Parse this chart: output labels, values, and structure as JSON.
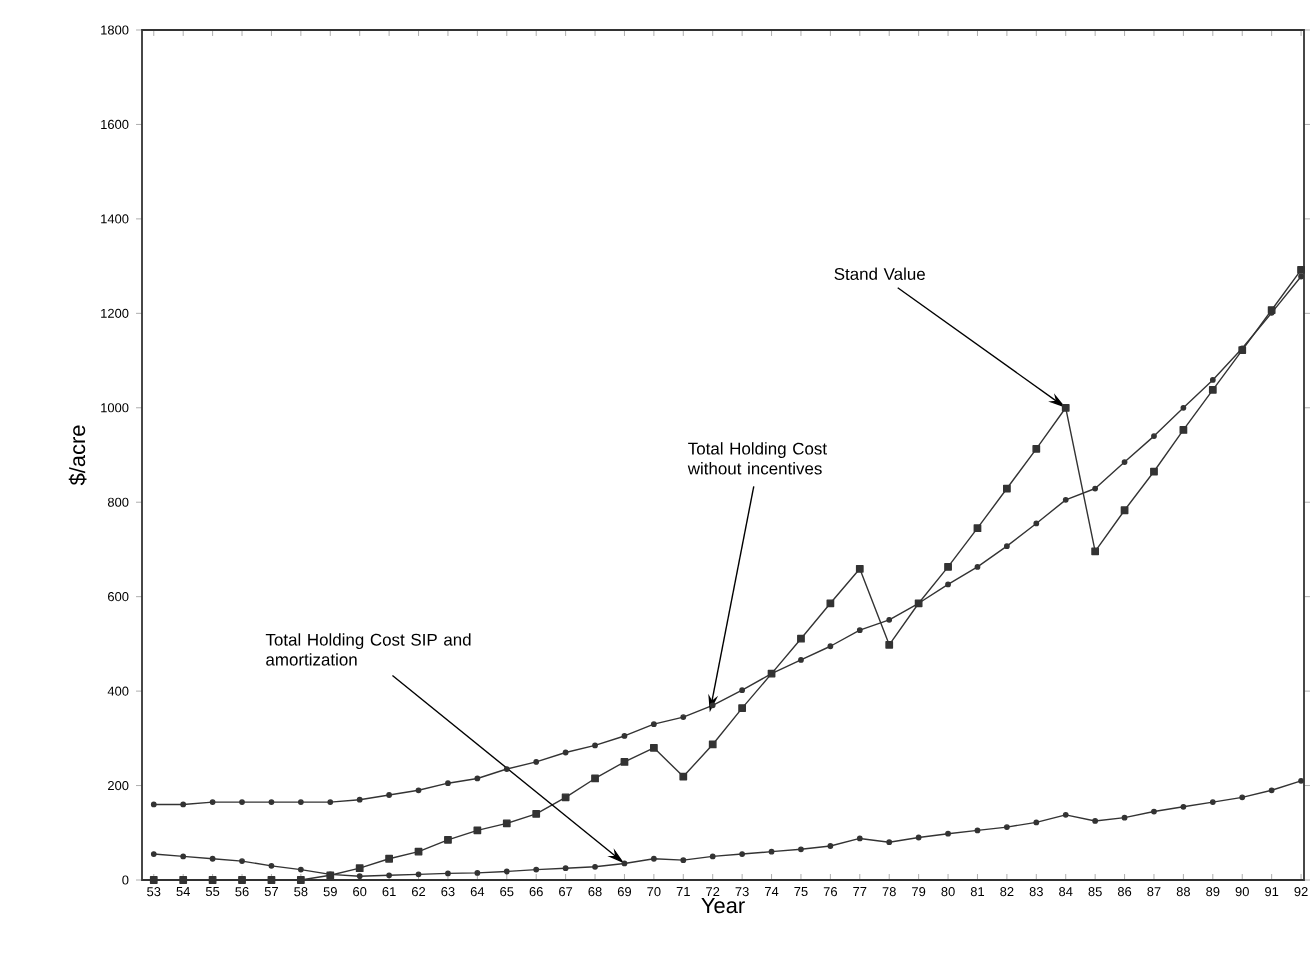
{
  "chart_data": {
    "type": "line",
    "xlabel": "Year",
    "ylabel": "$/acre",
    "x": [
      53,
      54,
      55,
      56,
      57,
      58,
      59,
      60,
      61,
      62,
      63,
      64,
      65,
      66,
      67,
      68,
      69,
      70,
      71,
      72,
      73,
      74,
      75,
      76,
      77,
      78,
      79,
      80,
      81,
      82,
      83,
      84,
      85,
      86,
      87,
      88,
      89,
      90,
      91,
      92
    ],
    "series": [
      {
        "color": "#333333",
        "marker": "square",
        "values": [
          0,
          0,
          0,
          0,
          0,
          0,
          10,
          25,
          45,
          60,
          85,
          105,
          120,
          140,
          175,
          215,
          250,
          280,
          219,
          287,
          364,
          437,
          511,
          586,
          659,
          498,
          586,
          663,
          745,
          829,
          913,
          1000,
          696,
          783,
          865,
          953,
          1038,
          1122,
          1207,
          1292
        ]
      },
      {
        "color": "#333333",
        "values": [
          160,
          160,
          165,
          165,
          165,
          165,
          165,
          170,
          180,
          190,
          205,
          215,
          235,
          250,
          270,
          285,
          305,
          330,
          345,
          370,
          402,
          437,
          466,
          495,
          529,
          551,
          586,
          626,
          663,
          707,
          755,
          805,
          829,
          885,
          940,
          1000,
          1059,
          1126,
          1201,
          1278
        ]
      },
      {
        "color": "#333333",
        "values": [
          55,
          50,
          45,
          40,
          30,
          22,
          12,
          8,
          10,
          12,
          14,
          15,
          18,
          22,
          25,
          28,
          35,
          45,
          42,
          50,
          55,
          60,
          65,
          72,
          88,
          80,
          90,
          98,
          105,
          112,
          122,
          138,
          125,
          132,
          145,
          155,
          165,
          175,
          190,
          210
        ]
      }
    ],
    "xlim": [
      52.6,
      92.1
    ],
    "ylim": [
      0,
      1800
    ],
    "xticks": [
      53,
      54,
      55,
      56,
      57,
      58,
      59,
      60,
      61,
      62,
      63,
      64,
      65,
      66,
      67,
      68,
      69,
      70,
      71,
      72,
      73,
      74,
      75,
      76,
      77,
      78,
      79,
      80,
      81,
      82,
      83,
      84,
      85,
      86,
      87,
      88,
      89,
      90,
      91,
      92
    ],
    "yticks": [
      0,
      200,
      400,
      600,
      800,
      1000,
      1200,
      1400,
      1600,
      1800
    ],
    "marker": "circle",
    "grid": false,
    "annotations": [
      {
        "text": "Stand Value",
        "x": 84,
        "y": 1000
      },
      {
        "text": "Total Holding Cost without incentives",
        "x": 71.9,
        "y": 355
      },
      {
        "text": "Total Holding Cost SIP and amortization",
        "x": 69,
        "y": 35
      }
    ]
  }
}
